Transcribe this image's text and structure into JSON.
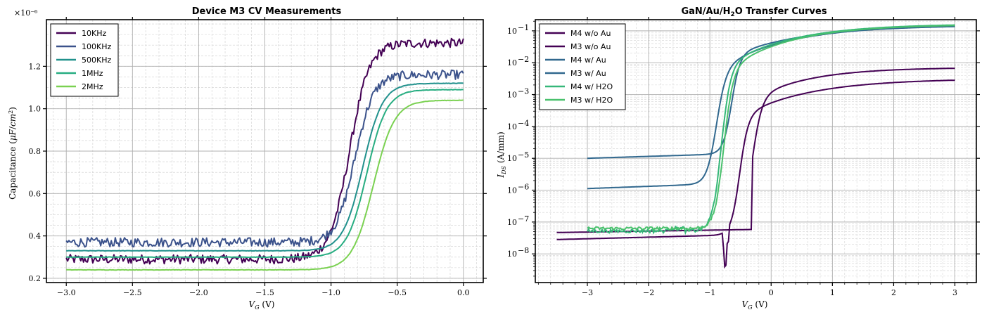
{
  "chart_data": [
    {
      "type": "line",
      "title": "Device M3 CV Measurements",
      "xlabel": "V_G (V)",
      "ylabel": "Capacitance (μF/cm²)",
      "offset_text": "×10⁻⁶",
      "xlim": [
        -3.15,
        0.15
      ],
      "ylim": [
        0.18,
        1.42
      ],
      "xticks": [
        -3.0,
        -2.5,
        -2.0,
        -1.5,
        -1.0,
        -0.5,
        0.0
      ],
      "xtick_labels": [
        "−3.0",
        "−2.5",
        "−2.0",
        "−1.5",
        "−1.0",
        "−0.5",
        "0.0"
      ],
      "yticks": [
        0.2,
        0.4,
        0.6,
        0.8,
        1.0,
        1.2
      ],
      "ytick_labels": [
        "0.2",
        "0.4",
        "0.6",
        "0.8",
        "1.0",
        "1.2"
      ],
      "grid": true,
      "legend_position": "top-left",
      "series": [
        {
          "name": "10KHz",
          "color": "#440154",
          "low": 0.29,
          "high": 1.31,
          "v0": -0.86,
          "k": 0.075,
          "noise": 0.022
        },
        {
          "name": "100KHz",
          "color": "#3b528b",
          "low": 0.37,
          "high": 1.16,
          "v0": -0.82,
          "k": 0.07,
          "noise": 0.022
        },
        {
          "name": "500KHz",
          "color": "#21918c",
          "low": 0.33,
          "high": 1.12,
          "v0": -0.76,
          "k": 0.075,
          "noise": 0.0
        },
        {
          "name": "1MHz",
          "color": "#27ad81",
          "low": 0.3,
          "high": 1.09,
          "v0": -0.73,
          "k": 0.075,
          "noise": 0.0
        },
        {
          "name": "2MHz",
          "color": "#7ad151",
          "low": 0.24,
          "high": 1.04,
          "v0": -0.68,
          "k": 0.08,
          "noise": 0.0
        }
      ]
    },
    {
      "type": "line",
      "title": "GaN/Au/H₂O Transfer Curves",
      "xlabel": "V_G (V)",
      "ylabel": "I_DS (A/mm)",
      "xlim": [
        -3.85,
        3.35
      ],
      "ylim_log10": [
        -8.9,
        -0.65
      ],
      "yscale": "log",
      "xticks": [
        -3,
        -2,
        -1,
        0,
        1,
        2,
        3
      ],
      "xtick_labels": [
        "−3",
        "−2",
        "−1",
        "0",
        "1",
        "2",
        "3"
      ],
      "yticks_log10": [
        -8,
        -7,
        -6,
        -5,
        -4,
        -3,
        -2,
        -1
      ],
      "ytick_mantissa": [
        "10",
        "10",
        "10",
        "10",
        "10",
        "10",
        "10",
        "10"
      ],
      "ytick_exponents": [
        "−8",
        "−7",
        "−6",
        "−5",
        "−4",
        "−3",
        "−2",
        "−1"
      ],
      "grid": true,
      "legend_position": "top-left",
      "series": [
        {
          "name": "M4 w/o Au",
          "color": "#440154"
        },
        {
          "name": "M3 w/o Au",
          "color": "#440154"
        },
        {
          "name": "M4 w/ Au",
          "color": "#31688e"
        },
        {
          "name": "M3 w/ Au",
          "color": "#31688e"
        },
        {
          "name": "M4 w/ H2O",
          "color": "#35b779"
        },
        {
          "name": "M3 w/ H2O",
          "color": "#35b779"
        }
      ]
    }
  ]
}
